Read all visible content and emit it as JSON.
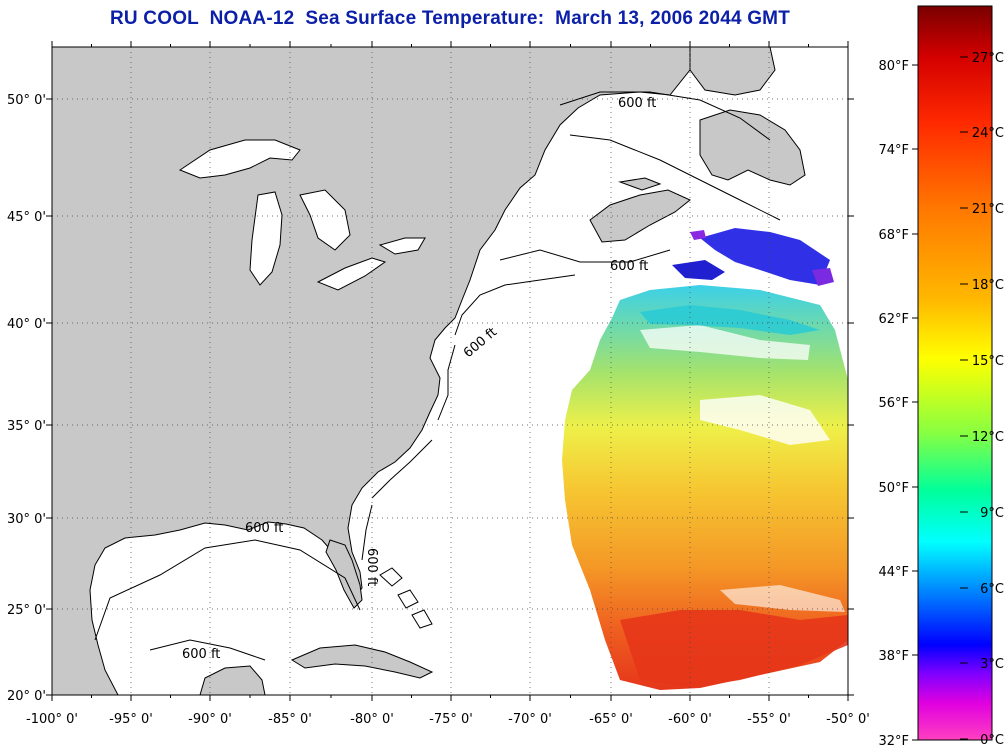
{
  "title": "RU COOL  NOAA-12  Sea Surface Temperature:  March 13, 2006 2044 GMT",
  "map": {
    "lon_ticks": [
      "-100° 0'",
      "-95° 0'",
      "-90° 0'",
      "-85° 0'",
      "-80° 0'",
      "-75° 0'",
      "-70° 0'",
      "-65° 0'",
      "-60° 0'",
      "-55° 0'",
      "-50° 0'"
    ],
    "lat_ticks": [
      "50° 0'",
      "45° 0'",
      "40° 0'",
      "35° 0'",
      "30° 0'",
      "25° 0'",
      "20° 0'"
    ],
    "isobath_label": "600 ft",
    "colors": {
      "land": "#c8c8c8",
      "ocean": "#ffffff",
      "coast": "#000000"
    }
  },
  "colorbar": {
    "fahrenheit": [
      "80°F",
      "74°F",
      "68°F",
      "62°F",
      "56°F",
      "50°F",
      "44°F",
      "38°F",
      "32°F"
    ],
    "celsius": [
      "27°C",
      "24°C",
      "21°C",
      "18°C",
      "15°C",
      "12°C",
      "9°C",
      "6°C",
      "3°C",
      "0°C"
    ]
  }
}
